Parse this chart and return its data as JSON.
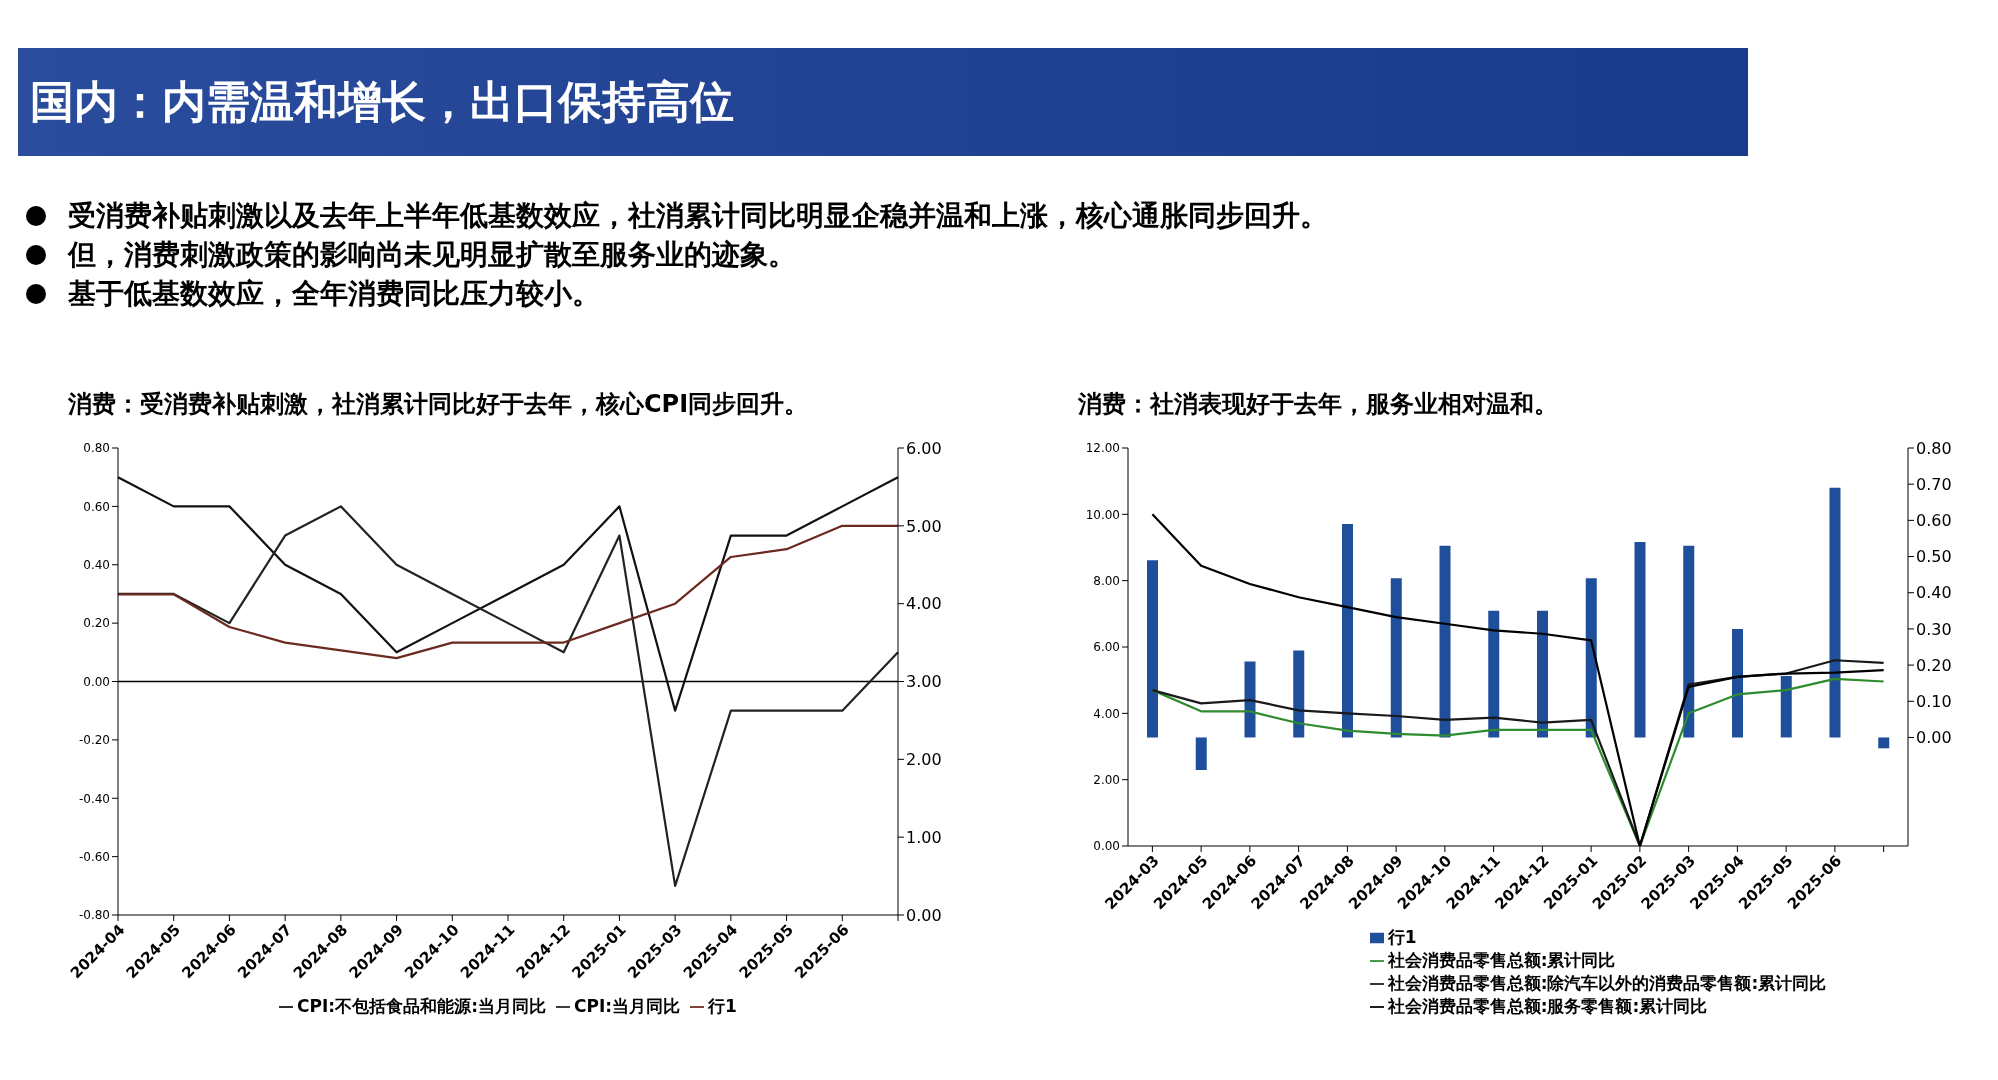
{
  "chart_data": [
    {
      "type": "other",
      "title": "国内：内需温和增长，出口保持高位",
      "annotations": [
        "受消费补贴刺激以及去年上半年低基数效应，社消累计同比明显企稳并温和上涨，核心通胀同步回升。",
        "但，消费刺激政策的影响尚未见明显扩散至服务业的迹象。",
        "基于低基数效应，全年消费同比压力较小。"
      ]
    },
    {
      "type": "line",
      "title": "消费：受消费补贴刺激，社消累计同比好于去年，核心CPI同步回升。",
      "categories": [
        "2024-04",
        "2024-05",
        "2024-06",
        "2024-07",
        "2024-08",
        "2024-09",
        "2024-10",
        "2024-11",
        "2024-12",
        "2025-01",
        "2025-03",
        "2025-04",
        "2025-05",
        "2025-06",
        null
      ],
      "series": [
        {
          "name": "CPI:不包括食品和能源:当月同比",
          "color": "#111111",
          "values": [
            0.7,
            0.6,
            0.6,
            0.4,
            0.3,
            0.1,
            0.2,
            0.3,
            0.4,
            0.6,
            -0.1,
            0.5,
            0.5,
            0.6,
            0.7
          ]
        },
        {
          "name": "CPI:当月同比",
          "color": "#222222",
          "values": [
            0.3,
            0.3,
            0.2,
            0.5,
            0.6,
            0.4,
            0.3,
            0.2,
            0.1,
            0.5,
            -0.7,
            -0.1,
            -0.1,
            -0.1,
            0.1
          ]
        },
        {
          "name": "行1",
          "color": "#6b2a1e",
          "axis": "y2",
          "values": [
            4.12,
            4.12,
            3.7,
            3.5,
            3.4,
            3.3,
            3.5,
            3.5,
            3.5,
            3.75,
            4.0,
            4.6,
            4.7,
            5.0,
            5.0
          ]
        }
      ],
      "ylim": [
        -0.8,
        0.8
      ],
      "yticks": [
        {
          "value": -0.8,
          "label": "-0.80"
        },
        {
          "value": -0.6,
          "label": "-0.60"
        },
        {
          "value": -0.4,
          "label": "-0.40"
        },
        {
          "value": -0.2,
          "label": "-0.20"
        },
        {
          "value": 0,
          "label": "0.00"
        },
        {
          "value": 0.2,
          "label": "0.20"
        },
        {
          "value": 0.4,
          "label": "0.40"
        },
        {
          "value": 0.6,
          "label": "0.60"
        },
        {
          "value": 0.8,
          "label": "0.80"
        }
      ],
      "y2lim": [
        0,
        6
      ],
      "y2ticks": [
        {
          "value": 0,
          "label": "0.00"
        },
        {
          "value": 1,
          "label": "1.00"
        },
        {
          "value": 2,
          "label": "2.00"
        },
        {
          "value": 3,
          "label": "3.00"
        },
        {
          "value": 4,
          "label": "4.00"
        },
        {
          "value": 5,
          "label": "5.00"
        },
        {
          "value": 6,
          "label": "6.00"
        }
      ],
      "ref_lines": [
        {
          "axis": "y",
          "value": 0,
          "color": "#000000"
        }
      ],
      "grid": false,
      "legend": "bottom",
      "marker": "none",
      "line_style": "solid"
    },
    {
      "type": "line",
      "title": "消费：社消表现好于去年，服务业相对温和。",
      "categories": [
        "2024-03",
        "2024-05",
        "2024-06",
        "2024-07",
        "2024-08",
        "2024-09",
        "2024-10",
        "2024-11",
        "2024-12",
        "2025-01",
        "2025-02",
        "2025-03",
        "2025-04",
        "2025-05",
        "2025-06",
        null
      ],
      "series": [
        {
          "name": "行1",
          "type": "bar",
          "color": "#1f4e9a",
          "axis": "y2",
          "values": [
            0.49,
            -0.09,
            0.21,
            0.24,
            0.59,
            0.44,
            0.53,
            0.35,
            0.35,
            0.44,
            0.54,
            0.53,
            0.3,
            0.17,
            0.69,
            -0.03
          ]
        },
        {
          "name": "社会消费品零售总额:累计同比",
          "color": "#2e8b2e",
          "values": [
            4.7,
            4.06,
            4.06,
            3.7,
            3.48,
            3.38,
            3.33,
            3.5,
            3.5,
            3.5,
            0,
            4.0,
            4.57,
            4.7,
            5.04,
            4.96
          ]
        },
        {
          "name": "社会消费品零售总额:除汽车以外的消费品零售额:累计同比",
          "color": "#1a1a1a",
          "values": [
            4.7,
            4.3,
            4.4,
            4.09,
            4.0,
            3.92,
            3.8,
            3.87,
            3.72,
            3.8,
            0,
            4.87,
            5.1,
            5.2,
            5.6,
            5.52
          ]
        },
        {
          "name": "社会消费品零售总额:服务零售额:累计同比",
          "color": "#000000",
          "values": [
            10.0,
            8.45,
            7.9,
            7.5,
            7.2,
            6.9,
            6.7,
            6.5,
            6.4,
            6.2,
            0,
            4.8,
            5.1,
            5.2,
            5.23,
            5.3
          ]
        }
      ],
      "ylim": [
        0,
        12
      ],
      "yticks": [
        {
          "value": 0,
          "label": "0.00"
        },
        {
          "value": 2,
          "label": "2.00"
        },
        {
          "value": 4,
          "label": "4.00"
        },
        {
          "value": 6,
          "label": "6.00"
        },
        {
          "value": 8,
          "label": "8.00"
        },
        {
          "value": 10,
          "label": "10.00"
        },
        {
          "value": 12,
          "label": "12.00"
        }
      ],
      "y2lim": [
        -0.3,
        0.8
      ],
      "y2ticks": [
        {
          "value": 0,
          "label": "0.00"
        },
        {
          "value": 0.1,
          "label": "0.10"
        },
        {
          "value": 0.2,
          "label": "0.20"
        },
        {
          "value": 0.3,
          "label": "0.30"
        },
        {
          "value": 0.4,
          "label": "0.40"
        },
        {
          "value": 0.5,
          "label": "0.50"
        },
        {
          "value": 0.6,
          "label": "0.60"
        },
        {
          "value": 0.7,
          "label": "0.70"
        },
        {
          "value": 0.8,
          "label": "0.80"
        }
      ],
      "grid": false,
      "legend": "bottom",
      "marker": "none",
      "line_style": "solid"
    }
  ]
}
